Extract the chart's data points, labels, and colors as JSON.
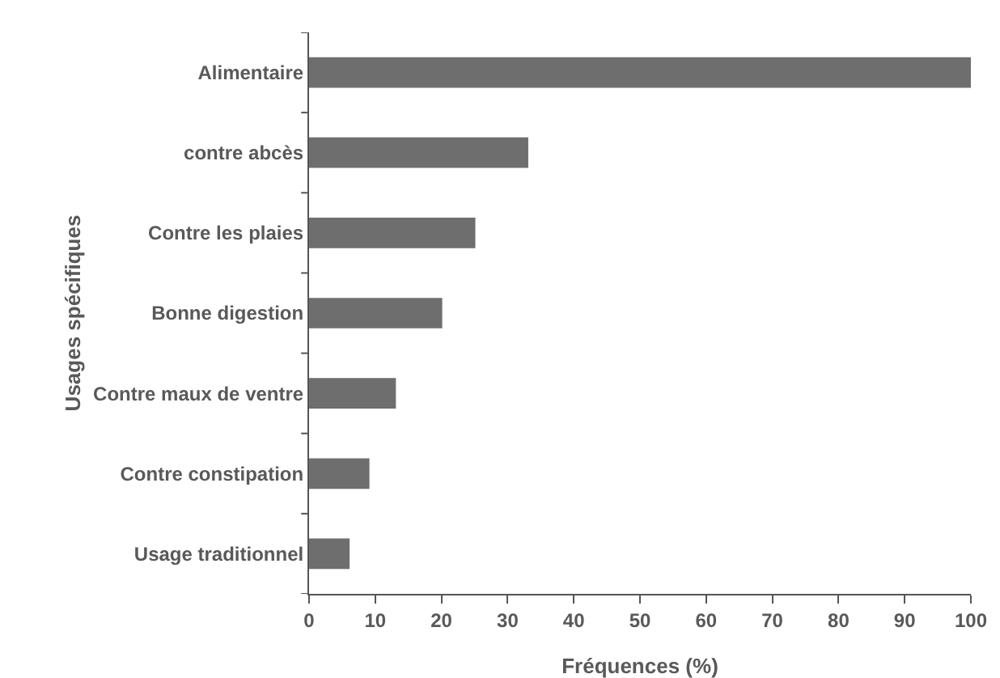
{
  "chart_data": {
    "type": "bar",
    "orientation": "horizontal",
    "xlabel": "Fréquences (%)",
    "ylabel": "Usages spécifiques",
    "categories": [
      "Alimentaire",
      "contre abcès",
      "Contre les plaies",
      "Bonne digestion",
      "Contre maux de ventre",
      "Contre constipation",
      "Usage traditionnel"
    ],
    "values": [
      100,
      33,
      25,
      20,
      13,
      9,
      6
    ],
    "color": "#6e6e6e",
    "xlim": [
      0,
      100
    ],
    "xticks": [
      0,
      10,
      20,
      30,
      40,
      50,
      60,
      70,
      80,
      90,
      100
    ],
    "grid": false,
    "legend": false
  }
}
